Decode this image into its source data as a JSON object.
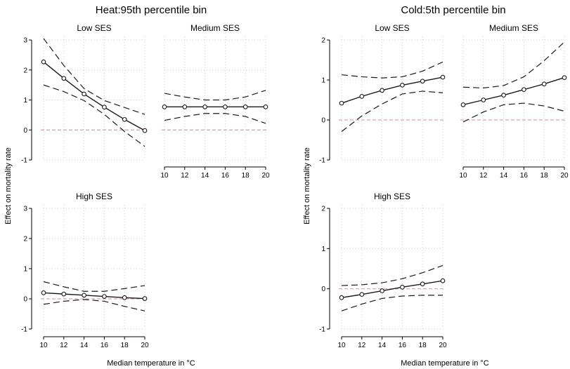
{
  "figure": {
    "y_label": "Effect on mortality rate",
    "x_label": "Median temperature in °C"
  },
  "colors": {
    "line": "#1a1a1a",
    "ci": "#1a1a1a",
    "zero_line": "#d9a3ab",
    "grid": "#cccccc",
    "marker_fill": "#ffffff"
  },
  "chart_data": [
    {
      "type": "line",
      "title": "Heat:95th percentile bin",
      "panels": [
        {
          "id": "heat-low",
          "subtitle": "Low SES",
          "x": [
            10,
            12,
            14,
            16,
            18,
            20
          ],
          "ylim": [
            -1,
            3
          ],
          "yticks": [
            "-1",
            "0",
            "1",
            "2",
            "3"
          ],
          "xticks": [
            "10",
            "12",
            "14",
            "16",
            "18",
            "20"
          ],
          "grid": true,
          "series": [
            {
              "role": "estimate",
              "values": [
                2.27,
                1.72,
                1.2,
                0.76,
                0.35,
                -0.02
              ]
            },
            {
              "role": "upper_ci",
              "values": [
                3.05,
                2.15,
                1.38,
                0.98,
                0.75,
                0.52
              ]
            },
            {
              "role": "lower_ci",
              "values": [
                1.5,
                1.28,
                0.98,
                0.52,
                -0.05,
                -0.55
              ]
            }
          ]
        },
        {
          "id": "heat-medium",
          "subtitle": "Medium SES",
          "x": [
            10,
            12,
            14,
            16,
            18,
            20
          ],
          "ylim": [
            -1,
            3
          ],
          "yticks": [
            "-1",
            "0",
            "1",
            "2",
            "3"
          ],
          "xticks": [
            "10",
            "12",
            "14",
            "16",
            "18",
            "20"
          ],
          "grid": true,
          "series": [
            {
              "role": "estimate",
              "values": [
                0.77,
                0.77,
                0.77,
                0.77,
                0.77,
                0.77
              ]
            },
            {
              "role": "upper_ci",
              "values": [
                1.22,
                1.1,
                1.0,
                1.0,
                1.1,
                1.32
              ]
            },
            {
              "role": "lower_ci",
              "values": [
                0.32,
                0.45,
                0.55,
                0.55,
                0.45,
                0.22
              ]
            }
          ]
        },
        {
          "id": "heat-high",
          "subtitle": "High SES",
          "x": [
            10,
            12,
            14,
            16,
            18,
            20
          ],
          "ylim": [
            -1,
            3
          ],
          "yticks": [
            "-1",
            "0",
            "1",
            "2",
            "3"
          ],
          "xticks": [
            "10",
            "12",
            "14",
            "16",
            "18",
            "20"
          ],
          "grid": true,
          "series": [
            {
              "role": "estimate",
              "values": [
                0.2,
                0.16,
                0.12,
                0.08,
                0.04,
                0.01
              ]
            },
            {
              "role": "upper_ci",
              "values": [
                0.57,
                0.4,
                0.25,
                0.25,
                0.34,
                0.44
              ]
            },
            {
              "role": "lower_ci",
              "values": [
                -0.18,
                -0.08,
                -0.02,
                -0.08,
                -0.25,
                -0.4
              ]
            }
          ]
        }
      ]
    },
    {
      "type": "line",
      "title": "Cold:5th percentile bin",
      "panels": [
        {
          "id": "cold-low",
          "subtitle": "Low SES",
          "x": [
            10,
            12,
            14,
            16,
            18,
            20
          ],
          "ylim": [
            -1,
            2
          ],
          "yticks": [
            "-1",
            "0",
            "1",
            "2"
          ],
          "xticks": [
            "10",
            "12",
            "14",
            "16",
            "18",
            "20"
          ],
          "grid": true,
          "series": [
            {
              "role": "estimate",
              "values": [
                0.42,
                0.59,
                0.74,
                0.87,
                0.97,
                1.07
              ]
            },
            {
              "role": "upper_ci",
              "values": [
                1.13,
                1.08,
                1.05,
                1.08,
                1.22,
                1.45
              ]
            },
            {
              "role": "lower_ci",
              "values": [
                -0.29,
                0.1,
                0.4,
                0.65,
                0.72,
                0.68
              ]
            }
          ]
        },
        {
          "id": "cold-medium",
          "subtitle": "Medium SES",
          "x": [
            10,
            12,
            14,
            16,
            18,
            20
          ],
          "ylim": [
            -1,
            2
          ],
          "yticks": [
            "-1",
            "0",
            "1",
            "2"
          ],
          "xticks": [
            "10",
            "12",
            "14",
            "16",
            "18",
            "20"
          ],
          "grid": true,
          "series": [
            {
              "role": "estimate",
              "values": [
                0.38,
                0.5,
                0.62,
                0.76,
                0.9,
                1.06
              ]
            },
            {
              "role": "upper_ci",
              "values": [
                0.82,
                0.8,
                0.86,
                1.08,
                1.48,
                1.95
              ]
            },
            {
              "role": "lower_ci",
              "values": [
                -0.05,
                0.2,
                0.38,
                0.42,
                0.35,
                0.22
              ]
            }
          ]
        },
        {
          "id": "cold-high",
          "subtitle": "High SES",
          "x": [
            10,
            12,
            14,
            16,
            18,
            20
          ],
          "ylim": [
            -1,
            2
          ],
          "yticks": [
            "-1",
            "0",
            "1",
            "2"
          ],
          "xticks": [
            "10",
            "12",
            "14",
            "16",
            "18",
            "20"
          ],
          "grid": true,
          "series": [
            {
              "role": "estimate",
              "values": [
                -0.22,
                -0.14,
                -0.05,
                0.04,
                0.12,
                0.2
              ]
            },
            {
              "role": "upper_ci",
              "values": [
                0.08,
                0.1,
                0.15,
                0.25,
                0.4,
                0.58
              ]
            },
            {
              "role": "lower_ci",
              "values": [
                -0.55,
                -0.38,
                -0.24,
                -0.18,
                -0.16,
                -0.16
              ]
            }
          ]
        }
      ]
    }
  ]
}
